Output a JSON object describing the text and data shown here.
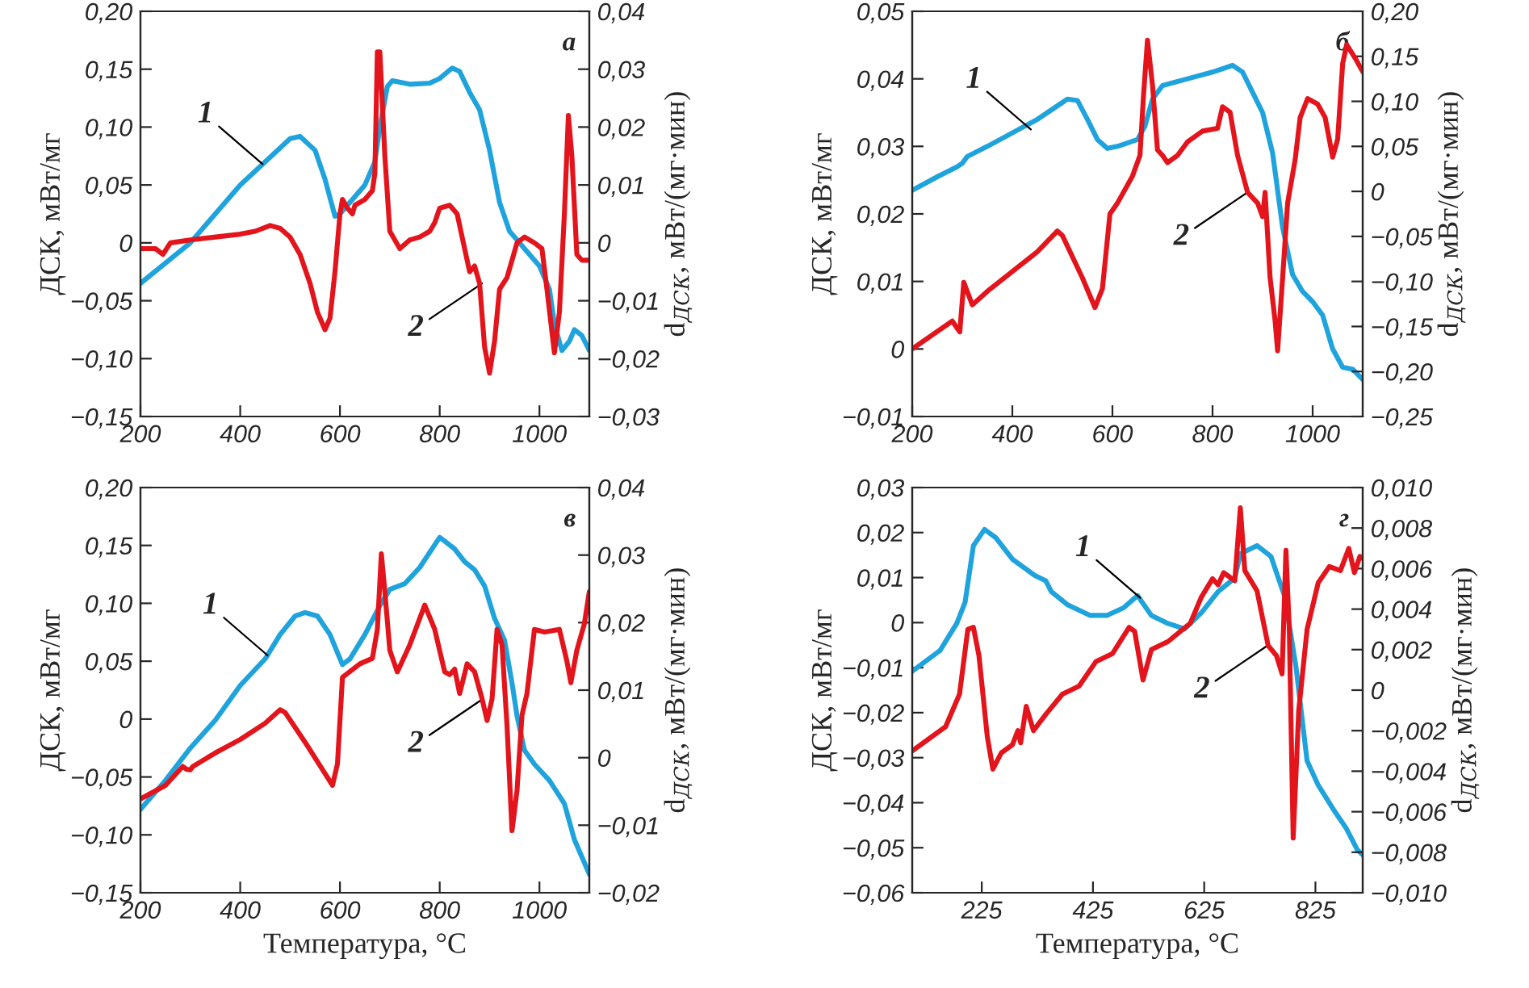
{
  "chart_data": [
    {
      "type": "line",
      "ylabel": "ДСК, мВт/мг",
      "y2label": "d$_{ДСК}$, мВт/(мг·мин)",
      "xlim": [
        200,
        1100
      ],
      "xticks": [
        200,
        400,
        600,
        800,
        1000
      ],
      "ylim": [
        -0.15,
        0.2
      ],
      "yticks": [
        {
          "value": -0.15,
          "label": "−0,15"
        },
        {
          "value": -0.1,
          "label": "−0,10"
        },
        {
          "value": -0.05,
          "label": "−0,05"
        },
        0,
        {
          "value": 0.05,
          "label": "0,05"
        },
        {
          "value": 0.1,
          "label": "0,10"
        },
        {
          "value": 0.15,
          "label": "0,15"
        },
        {
          "value": 0.2,
          "label": "0,20"
        }
      ],
      "y2lim": [
        -0.03,
        0.04
      ],
      "y2ticks": [
        {
          "value": -0.03,
          "label": "−0,03"
        },
        {
          "value": -0.02,
          "label": "−0,02"
        },
        {
          "value": -0.01,
          "label": "−0,01"
        },
        0,
        {
          "value": 0.01,
          "label": "0,01"
        },
        {
          "value": 0.02,
          "label": "0,02"
        },
        {
          "value": 0.03,
          "label": "0,03"
        },
        {
          "value": 0.04,
          "label": "0,04"
        }
      ],
      "legend": false,
      "grid": false,
      "series": [
        {
          "color": "#1fa3dd",
          "x": [
            200,
            300,
            400,
            450,
            500,
            520,
            550,
            570,
            590,
            600,
            620,
            650,
            670,
            680,
            695,
            705,
            740,
            780,
            800,
            825,
            840,
            860,
            880,
            900,
            920,
            940,
            960,
            980,
            1000,
            1020,
            1030,
            1045,
            1060,
            1070,
            1085,
            1100
          ],
          "values": [
            -0.035,
            0.0,
            0.05,
            0.07,
            0.09,
            0.092,
            0.08,
            0.055,
            0.023,
            0.025,
            0.035,
            0.05,
            0.07,
            0.1,
            0.135,
            0.14,
            0.137,
            0.138,
            0.142,
            0.151,
            0.148,
            0.13,
            0.115,
            0.08,
            0.035,
            0.01,
            0.0,
            -0.01,
            -0.02,
            -0.04,
            -0.07,
            -0.093,
            -0.085,
            -0.075,
            -0.08,
            -0.093
          ]
        },
        {
          "color": "#e3141b",
          "axis": "y2",
          "x": [
            200,
            230,
            245,
            260,
            300,
            400,
            430,
            460,
            480,
            500,
            520,
            540,
            555,
            570,
            580,
            590,
            600,
            605,
            615,
            625,
            630,
            650,
            665,
            670,
            675,
            680,
            690,
            700,
            720,
            740,
            760,
            780,
            790,
            800,
            820,
            835,
            850,
            860,
            870,
            880,
            890,
            900,
            910,
            920,
            935,
            955,
            970,
            990,
            1005,
            1015,
            1030,
            1040,
            1050,
            1058,
            1065,
            1075,
            1085,
            1100
          ],
          "values": [
            -0.001,
            -0.001,
            -0.002,
            0.0,
            0.0005,
            0.0015,
            0.002,
            0.003,
            0.0025,
            0.001,
            -0.002,
            -0.007,
            -0.012,
            -0.015,
            -0.013,
            -0.005,
            0.005,
            0.0075,
            0.006,
            0.005,
            0.0065,
            0.0075,
            0.009,
            0.012,
            0.033,
            0.033,
            0.015,
            0.002,
            -0.001,
            0.0005,
            0.001,
            0.002,
            0.0035,
            0.006,
            0.0065,
            0.005,
            -0.001,
            -0.005,
            -0.004,
            -0.007,
            -0.018,
            -0.0225,
            -0.017,
            -0.008,
            -0.006,
            0.0,
            0.001,
            0.0,
            -0.001,
            -0.008,
            -0.019,
            -0.012,
            0.005,
            0.022,
            0.015,
            -0.002,
            -0.003,
            -0.003
          ]
        }
      ],
      "annotations": [
        "а",
        {
          "text": "1",
          "x": 445,
          "y": 0.068
        },
        {
          "text": "2",
          "x": 885,
          "y": -0.035
        }
      ]
    },
    {
      "type": "line",
      "ylabel": "ДСК, мВт/мг",
      "y2label": "d$_{ДСК}$, мВт/(мг·мин)",
      "xlim": [
        200,
        1100
      ],
      "xticks": [
        200,
        400,
        600,
        800,
        1000
      ],
      "ylim": [
        -0.01,
        0.05
      ],
      "yticks": [
        {
          "value": -0.01,
          "label": "−0,01"
        },
        0,
        {
          "value": 0.01,
          "label": "0,01"
        },
        {
          "value": 0.02,
          "label": "0,02"
        },
        {
          "value": 0.03,
          "label": "0,03"
        },
        {
          "value": 0.04,
          "label": "0,04"
        },
        {
          "value": 0.05,
          "label": "0,05"
        }
      ],
      "y2lim": [
        -0.25,
        0.2
      ],
      "y2ticks": [
        {
          "value": -0.25,
          "label": "−0,25"
        },
        {
          "value": -0.2,
          "label": "−0,20"
        },
        {
          "value": -0.15,
          "label": "−0,15"
        },
        {
          "value": -0.1,
          "label": "−0,10"
        },
        {
          "value": -0.05,
          "label": "−0,05"
        },
        0,
        {
          "value": 0.05,
          "label": "0,05"
        },
        {
          "value": 0.1,
          "label": "0,10"
        },
        {
          "value": 0.15,
          "label": "0,15"
        },
        {
          "value": 0.2,
          "label": "0,20"
        }
      ],
      "legend": false,
      "grid": false,
      "series": [
        {
          "color": "#1fa3dd",
          "x": [
            200,
            250,
            290,
            300,
            310,
            350,
            400,
            450,
            490,
            510,
            530,
            550,
            570,
            590,
            610,
            650,
            665,
            680,
            700,
            750,
            800,
            840,
            860,
            880,
            900,
            920,
            940,
            960,
            980,
            1000,
            1020,
            1040,
            1060,
            1080,
            1100
          ],
          "values": [
            0.0235,
            0.0255,
            0.027,
            0.0275,
            0.0285,
            0.03,
            0.032,
            0.034,
            0.036,
            0.037,
            0.0368,
            0.034,
            0.031,
            0.0297,
            0.03,
            0.031,
            0.033,
            0.037,
            0.039,
            0.04,
            0.041,
            0.042,
            0.041,
            0.038,
            0.035,
            0.029,
            0.018,
            0.011,
            0.0085,
            0.007,
            0.005,
            0.0,
            -0.0027,
            -0.003,
            -0.0045
          ]
        },
        {
          "color": "#e3141b",
          "axis": "y2",
          "x": [
            200,
            280,
            295,
            303,
            320,
            350,
            400,
            450,
            490,
            500,
            540,
            565,
            580,
            595,
            610,
            640,
            655,
            662,
            670,
            680,
            690,
            700,
            710,
            730,
            750,
            780,
            810,
            820,
            835,
            850,
            870,
            890,
            900,
            905,
            915,
            925,
            930,
            940,
            950,
            965,
            975,
            990,
            1010,
            1025,
            1040,
            1050,
            1060,
            1068,
            1085,
            1100
          ],
          "values": [
            -0.175,
            -0.144,
            -0.156,
            -0.101,
            -0.126,
            -0.111,
            -0.089,
            -0.067,
            -0.044,
            -0.049,
            -0.096,
            -0.129,
            -0.108,
            -0.025,
            -0.013,
            0.017,
            0.04,
            0.106,
            0.168,
            0.118,
            0.046,
            0.04,
            0.032,
            0.04,
            0.055,
            0.067,
            0.07,
            0.094,
            0.088,
            0.04,
            -0.001,
            -0.013,
            -0.028,
            -0.001,
            -0.096,
            -0.144,
            -0.177,
            -0.096,
            -0.013,
            0.035,
            0.082,
            0.103,
            0.097,
            0.082,
            0.038,
            0.058,
            0.142,
            0.163,
            0.148,
            0.133
          ]
        }
      ],
      "annotations": [
        "б",
        {
          "text": "1",
          "x": 437,
          "y": 0.0325
        },
        {
          "text": "2",
          "x": 870,
          "y": 0.0232
        }
      ]
    },
    {
      "type": "line",
      "ylabel": "ДСК, мВт/мг",
      "y2label": "d$_{ДСК}$, мВт/(мг·мин)",
      "xlabel": "Температура, °С",
      "xlim": [
        200,
        1100
      ],
      "xticks": [
        200,
        400,
        600,
        800,
        1000
      ],
      "ylim": [
        -0.15,
        0.2
      ],
      "yticks": [
        {
          "value": -0.15,
          "label": "−0,15"
        },
        {
          "value": -0.1,
          "label": "−0,10"
        },
        {
          "value": -0.05,
          "label": "−0,05"
        },
        0,
        {
          "value": 0.05,
          "label": "0,05"
        },
        {
          "value": 0.1,
          "label": "0,10"
        },
        {
          "value": 0.15,
          "label": "0,15"
        },
        {
          "value": 0.2,
          "label": "0,20"
        }
      ],
      "y2lim": [
        -0.02,
        0.04
      ],
      "y2ticks": [
        {
          "value": -0.02,
          "label": "−0,02"
        },
        {
          "value": -0.01,
          "label": "−0,01"
        },
        0,
        {
          "value": 0.01,
          "label": "0,01"
        },
        {
          "value": 0.02,
          "label": "0,02"
        },
        {
          "value": 0.03,
          "label": "0,03"
        },
        {
          "value": 0.04,
          "label": "0,04"
        }
      ],
      "legend": false,
      "grid": false,
      "series": [
        {
          "color": "#1fa3dd",
          "x": [
            200,
            250,
            300,
            350,
            400,
            450,
            480,
            510,
            530,
            555,
            580,
            605,
            620,
            650,
            680,
            700,
            730,
            760,
            800,
            830,
            850,
            870,
            890,
            910,
            930,
            945,
            955,
            970,
            990,
            1020,
            1050,
            1070,
            1100
          ],
          "values": [
            -0.078,
            -0.053,
            -0.025,
            -0.001,
            0.029,
            0.052,
            0.073,
            0.089,
            0.092,
            0.089,
            0.073,
            0.047,
            0.052,
            0.073,
            0.098,
            0.112,
            0.117,
            0.131,
            0.157,
            0.147,
            0.136,
            0.129,
            0.115,
            0.087,
            0.068,
            0.031,
            0.003,
            -0.027,
            -0.039,
            -0.053,
            -0.073,
            -0.104,
            -0.134
          ]
        },
        {
          "color": "#e3141b",
          "axis": "y2",
          "x": [
            200,
            250,
            285,
            292,
            300,
            305,
            350,
            400,
            450,
            480,
            490,
            530,
            585,
            595,
            605,
            640,
            665,
            675,
            683,
            690,
            700,
            715,
            740,
            770,
            790,
            810,
            820,
            830,
            840,
            855,
            870,
            885,
            895,
            905,
            915,
            925,
            935,
            945,
            955,
            965,
            975,
            990,
            1010,
            1040,
            1055,
            1063,
            1075,
            1090,
            1100
          ],
          "values": [
            -0.0061,
            -0.0041,
            -0.0013,
            -0.0017,
            -0.0018,
            -0.0013,
            0.0007,
            0.0027,
            0.0051,
            0.0071,
            0.0067,
            0.0023,
            -0.0041,
            -0.0009,
            0.0119,
            0.0139,
            0.0147,
            0.019,
            0.0302,
            0.0246,
            0.0159,
            0.0127,
            0.0167,
            0.0226,
            0.019,
            0.0127,
            0.0123,
            0.0131,
            0.0095,
            0.0139,
            0.0127,
            0.0087,
            0.0055,
            0.0087,
            0.019,
            0.0167,
            0.0047,
            -0.0108,
            -0.0049,
            0.0063,
            0.0095,
            0.019,
            0.0186,
            0.019,
            0.0143,
            0.0111,
            0.0159,
            0.0198,
            0.0246
          ]
        }
      ],
      "annotations": [
        "в",
        {
          "text": "1",
          "x": 455,
          "y": 0.055
        },
        {
          "text": "2",
          "x": 885,
          "y": 0.017
        }
      ]
    },
    {
      "type": "line",
      "ylabel": "ДСК, мВт/мг",
      "y2label": "d$_{ДСК}$, мВт/(мг·мин)",
      "xlabel": "Температура, °С",
      "xlim": [
        100,
        910
      ],
      "xticks": [
        225,
        425,
        625,
        825
      ],
      "ylim": [
        -0.06,
        0.03
      ],
      "yticks": [
        {
          "value": -0.06,
          "label": "−0,06"
        },
        {
          "value": -0.05,
          "label": "−0,05"
        },
        {
          "value": -0.04,
          "label": "−0,04"
        },
        {
          "value": -0.03,
          "label": "−0,03"
        },
        {
          "value": -0.02,
          "label": "−0,02"
        },
        {
          "value": -0.01,
          "label": "−0,01"
        },
        0,
        {
          "value": 0.01,
          "label": "0,01"
        },
        {
          "value": 0.02,
          "label": "0,02"
        },
        {
          "value": 0.03,
          "label": "0,03"
        }
      ],
      "y2lim": [
        -0.01,
        0.01
      ],
      "y2ticks": [
        {
          "value": -0.01,
          "label": "−0,010"
        },
        {
          "value": -0.008,
          "label": "−0,008"
        },
        {
          "value": -0.006,
          "label": "−0,006"
        },
        {
          "value": -0.004,
          "label": "−0,004"
        },
        {
          "value": -0.002,
          "label": "−0,002"
        },
        0,
        {
          "value": 0.002,
          "label": "0,002"
        },
        {
          "value": 0.004,
          "label": "0,004"
        },
        {
          "value": 0.006,
          "label": "0,006"
        },
        {
          "value": 0.008,
          "label": "0,008"
        },
        {
          "value": 0.01,
          "label": "0,010"
        }
      ],
      "legend": false,
      "grid": false,
      "series": [
        {
          "color": "#1fa3dd",
          "x": [
            100,
            150,
            180,
            195,
            210,
            230,
            250,
            280,
            320,
            340,
            350,
            380,
            420,
            450,
            480,
            505,
            530,
            560,
            590,
            620,
            650,
            680,
            690,
            720,
            745,
            770,
            790,
            810,
            830,
            860,
            880,
            900,
            910
          ],
          "values": [
            -0.0108,
            -0.0062,
            -0.0002,
            0.0045,
            0.0171,
            0.0207,
            0.0189,
            0.0141,
            0.0105,
            0.0093,
            0.0069,
            0.0039,
            0.0016,
            0.0016,
            0.0033,
            0.006,
            0.0016,
            -0.0002,
            -0.0014,
            0.0022,
            0.0069,
            0.0099,
            0.0153,
            0.0171,
            0.0147,
            0.0057,
            -0.0098,
            -0.0307,
            -0.0361,
            -0.042,
            -0.0456,
            -0.0504,
            -0.0516
          ]
        },
        {
          "color": "#e3141b",
          "axis": "y2",
          "x": [
            100,
            130,
            160,
            185,
            200,
            210,
            220,
            235,
            245,
            260,
            280,
            290,
            295,
            305,
            318,
            340,
            370,
            400,
            430,
            460,
            490,
            500,
            515,
            530,
            560,
            600,
            620,
            640,
            650,
            660,
            680,
            690,
            698,
            720,
            740,
            755,
            765,
            772,
            778,
            785,
            795,
            810,
            830,
            850,
            870,
            885,
            895,
            905,
            910
          ],
          "values": [
            -0.003,
            -0.0024,
            -0.0018,
            -0.0002,
            0.003,
            0.0031,
            0.0017,
            -0.0023,
            -0.0039,
            -0.0031,
            -0.0027,
            -0.002,
            -0.0026,
            -0.0008,
            -0.002,
            -0.0012,
            -0.0002,
            0.0002,
            0.0014,
            0.0018,
            0.0031,
            0.0029,
            0.0005,
            0.002,
            0.0024,
            0.0033,
            0.0046,
            0.0055,
            0.0052,
            0.0058,
            0.0054,
            0.009,
            0.0059,
            0.0049,
            0.0022,
            0.0017,
            0.0008,
            0.0069,
            0.003,
            -0.0073,
            -0.001,
            0.003,
            0.0053,
            0.0061,
            0.0059,
            0.007,
            0.0058,
            0.0066,
            0.0065
          ]
        }
      ],
      "annotations": [
        "г",
        {
          "text": "1",
          "x": 510,
          "y": 0.0055
        },
        {
          "text": "2",
          "x": 740,
          "y": -0.005
        }
      ]
    }
  ]
}
